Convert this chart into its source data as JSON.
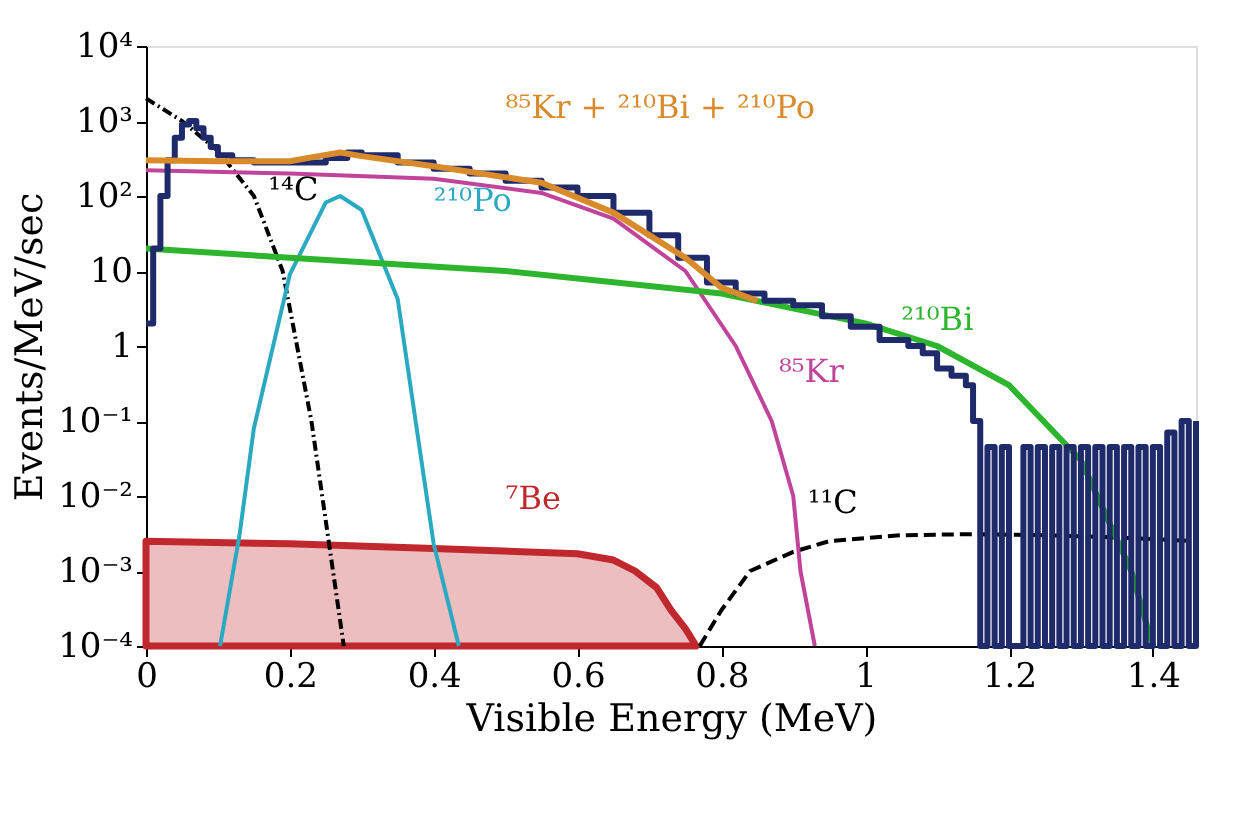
{
  "chart_data": {
    "type": "line",
    "xlabel": "Visible Energy (MeV)",
    "ylabel": "Events/MeV/sec",
    "log": "y",
    "grid": false,
    "xlim": [
      0,
      1.46
    ],
    "xticks": [
      {
        "value": 0,
        "label": "0"
      },
      0.2,
      0.4,
      0.6,
      0.8,
      {
        "value": 1,
        "label": "1"
      },
      1.2,
      1.4
    ],
    "line_style": "solid",
    "ylim": [
      0.0001,
      10000
    ],
    "yticks": [
      {
        "value": 0.0001,
        "label": "10⁻⁴"
      },
      {
        "value": 0.001,
        "label": "10⁻³"
      },
      {
        "value": 0.01,
        "label": "10⁻²"
      },
      {
        "value": 0.1,
        "label": "10⁻¹"
      },
      1,
      10,
      {
        "value": 100,
        "label": "10²"
      },
      {
        "value": 1000,
        "label": "10³"
      },
      {
        "value": 10000,
        "label": "10⁴"
      }
    ],
    "series": [
      {
        "type": "area",
        "name": "⁷Be",
        "color": "#c0282e",
        "x": [
          0,
          0.2,
          0.4,
          0.6,
          0.65,
          0.68,
          0.71,
          0.73,
          0.75,
          0.765
        ],
        "values": [
          0.0025,
          0.0023,
          0.002,
          0.0017,
          0.0014,
          0.001,
          0.0006,
          0.0003,
          0.00017,
          0.0001
        ]
      },
      {
        "type": "line",
        "name": "¹⁴C",
        "color": "#000000",
        "line_style": "dotted",
        "x": [
          0,
          0.05,
          0.1,
          0.15,
          0.19,
          0.21,
          0.23,
          0.245,
          0.26,
          0.275
        ],
        "values": [
          2000,
          1000,
          400,
          100,
          10,
          1,
          0.1,
          0.01,
          0.001,
          0.0001
        ]
      },
      {
        "type": "line",
        "name": "¹¹C",
        "color": "#000000",
        "line_style": "dashed",
        "x": [
          0.77,
          0.8,
          0.84,
          0.9,
          0.95,
          1.05,
          1.15,
          1.25,
          1.35,
          1.46
        ],
        "values": [
          0.0001,
          0.0003,
          0.001,
          0.0018,
          0.0025,
          0.003,
          0.0031,
          0.003,
          0.0028,
          0.0025
        ]
      },
      {
        "name": "²¹⁰Po",
        "color": "#2aa9c0",
        "x": [
          0.103,
          0.13,
          0.15,
          0.2,
          0.25,
          0.27,
          0.3,
          0.35,
          0.4,
          0.435
        ],
        "values": [
          0.0001,
          0.003,
          0.08,
          9,
          82,
          100,
          65,
          4.2,
          0.0023,
          0.0001
        ]
      },
      {
        "name": "⁸⁵Kr",
        "color": "#c0449a",
        "x": [
          0,
          0.2,
          0.4,
          0.55,
          0.65,
          0.75,
          0.82,
          0.87,
          0.9,
          0.91,
          0.93
        ],
        "values": [
          220,
          200,
          170,
          110,
          50,
          10,
          1,
          0.1,
          0.01,
          0.001,
          0.0001
        ]
      },
      {
        "name": "²¹⁰Bi",
        "color": "#2db52d",
        "x": [
          0,
          0.2,
          0.5,
          0.8,
          1,
          1.1,
          1.2,
          1.3,
          1.37,
          1.4
        ],
        "values": [
          20,
          15,
          10,
          5,
          2,
          1,
          0.3,
          0.03,
          0.001,
          0.0001
        ]
      },
      {
        "type": "step",
        "color": "#1f2a6b",
        "x": [
          0,
          0.01,
          0.02,
          0.03,
          0.04,
          0.05,
          0.06,
          0.07,
          0.08,
          0.09,
          0.1,
          0.12,
          0.15,
          0.2,
          0.25,
          0.28,
          0.3,
          0.35,
          0.4,
          0.45,
          0.5,
          0.55,
          0.6,
          0.65,
          0.7,
          0.74,
          0.78,
          0.82,
          0.86,
          0.9,
          0.94,
          0.98,
          1.02,
          1.06,
          1.08,
          1.1,
          1.12,
          1.14,
          1.15,
          1.16,
          1.17,
          1.18,
          1.19,
          1.2,
          1.22,
          1.23,
          1.24,
          1.25,
          1.26,
          1.27,
          1.28,
          1.29,
          1.3,
          1.31,
          1.32,
          1.33,
          1.34,
          1.35,
          1.36,
          1.37,
          1.38,
          1.39,
          1.4,
          1.41,
          1.42,
          1.43,
          1.44,
          1.45,
          1.46
        ],
        "values": [
          2,
          20,
          100,
          300,
          600,
          900,
          1000,
          800,
          600,
          450,
          350,
          300,
          280,
          280,
          320,
          380,
          350,
          280,
          230,
          200,
          160,
          130,
          100,
          60,
          30,
          15,
          7,
          5,
          4,
          3.5,
          2.5,
          1.8,
          1.2,
          1,
          0.8,
          0.5,
          0.4,
          0.3,
          0.1,
          0.0001,
          0.045,
          0.0001,
          0.045,
          0.0001,
          0.045,
          0.0001,
          0.045,
          0.0001,
          0.045,
          0.0001,
          0.045,
          0.0001,
          0.045,
          0.0001,
          0.045,
          0.0001,
          0.045,
          0.0001,
          0.045,
          0.0001,
          0.045,
          0.0001,
          0.045,
          0.0001,
          0.07,
          0.0001,
          0.1,
          0.0001,
          0.1
        ]
      },
      {
        "name": "⁸⁵Kr + ²¹⁰Bi + ²¹⁰Po",
        "color": "#d98a2a",
        "x": [
          0,
          0.1,
          0.2,
          0.24,
          0.27,
          0.3,
          0.4,
          0.55,
          0.65,
          0.75,
          0.8,
          0.85
        ],
        "values": [
          300,
          290,
          290,
          340,
          380,
          340,
          250,
          150,
          60,
          15,
          6,
          4
        ]
      }
    ]
  }
}
